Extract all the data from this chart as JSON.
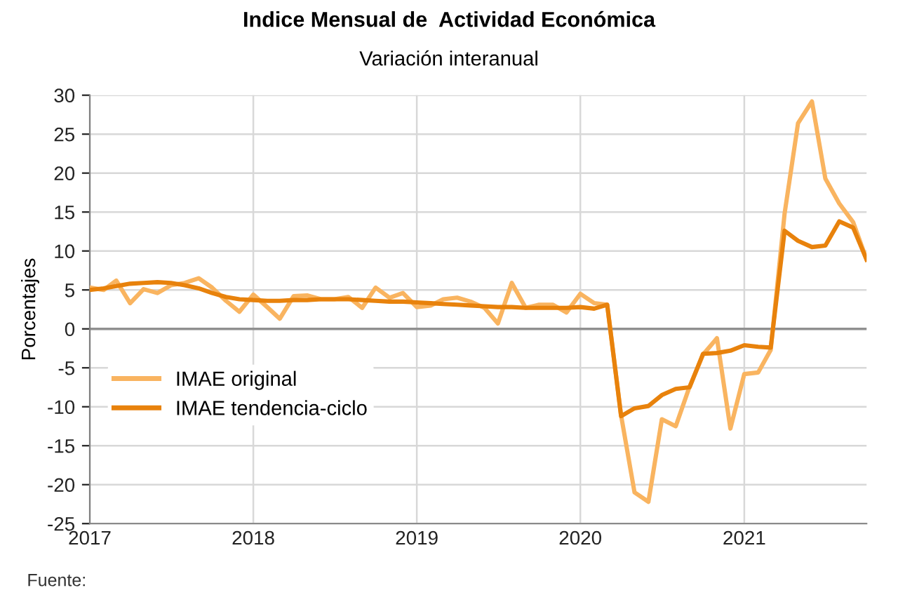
{
  "chart_data": {
    "type": "line",
    "title": "Indice Mensual de  Actividad Económica",
    "subtitle": "Variación interanual",
    "ylabel": "Porcentajes",
    "x": [
      "2017-01",
      "2017-02",
      "2017-03",
      "2017-04",
      "2017-05",
      "2017-06",
      "2017-07",
      "2017-08",
      "2017-09",
      "2017-10",
      "2017-11",
      "2017-12",
      "2018-01",
      "2018-02",
      "2018-03",
      "2018-04",
      "2018-05",
      "2018-06",
      "2018-07",
      "2018-08",
      "2018-09",
      "2018-10",
      "2018-11",
      "2018-12",
      "2019-01",
      "2019-02",
      "2019-03",
      "2019-04",
      "2019-05",
      "2019-06",
      "2019-07",
      "2019-08",
      "2019-09",
      "2019-10",
      "2019-11",
      "2019-12",
      "2020-01",
      "2020-02",
      "2020-03",
      "2020-04",
      "2020-05",
      "2020-06",
      "2020-07",
      "2020-08",
      "2020-09",
      "2020-10",
      "2020-11",
      "2020-12",
      "2021-01",
      "2021-02",
      "2021-03",
      "2021-04",
      "2021-05",
      "2021-06",
      "2021-07",
      "2021-08",
      "2021-09",
      "2021-10"
    ],
    "series": [
      {
        "name": "IMAE original",
        "color": "#f9b460",
        "values": [
          5.3,
          5.0,
          6.2,
          3.3,
          5.1,
          4.6,
          5.6,
          5.9,
          6.5,
          5.3,
          3.6,
          2.2,
          4.4,
          2.8,
          1.3,
          4.2,
          4.3,
          3.8,
          3.8,
          4.1,
          2.7,
          5.3,
          4.0,
          4.6,
          2.8,
          3.0,
          3.8,
          4.0,
          3.5,
          2.7,
          0.7,
          5.9,
          2.7,
          3.1,
          3.1,
          2.1,
          4.5,
          3.3,
          3.1,
          -11.1,
          -21.0,
          -22.2,
          -11.6,
          -12.5,
          -7.4,
          -3.3,
          -1.2,
          -12.8,
          -5.8,
          -5.6,
          -2.7,
          14.8,
          26.4,
          29.2,
          19.3,
          16.1,
          13.7,
          8.9
        ]
      },
      {
        "name": "IMAE tendencia-ciclo",
        "color": "#e8820c",
        "values": [
          5.0,
          5.2,
          5.5,
          5.8,
          5.9,
          6.0,
          5.9,
          5.6,
          5.2,
          4.6,
          4.1,
          3.8,
          3.7,
          3.6,
          3.6,
          3.7,
          3.7,
          3.8,
          3.8,
          3.8,
          3.7,
          3.6,
          3.5,
          3.5,
          3.4,
          3.3,
          3.2,
          3.1,
          3.0,
          2.9,
          2.8,
          2.8,
          2.7,
          2.7,
          2.7,
          2.7,
          2.8,
          2.6,
          3.1,
          -11.2,
          -10.2,
          -9.9,
          -8.5,
          -7.7,
          -7.5,
          -3.2,
          -3.1,
          -2.8,
          -2.1,
          -2.3,
          -2.4,
          12.6,
          11.3,
          10.5,
          10.7,
          13.8,
          13.0,
          8.9
        ]
      }
    ],
    "xlim": [
      "2017-01",
      "2021-10"
    ],
    "xticks": [
      {
        "value": "2017-01",
        "label": "2017"
      },
      {
        "value": "2018-01",
        "label": "2018"
      },
      {
        "value": "2019-01",
        "label": "2019"
      },
      {
        "value": "2020-01",
        "label": "2020"
      },
      {
        "value": "2021-01",
        "label": "2021"
      }
    ],
    "ylim": [
      -25,
      30
    ],
    "yticks": [
      -25,
      -20,
      -15,
      -10,
      -5,
      0,
      5,
      10,
      15,
      20,
      25,
      30
    ],
    "ref_lines": [
      {
        "axis": "y",
        "value": 0,
        "color": "#909090"
      }
    ],
    "grid": true,
    "legend": "left",
    "line_style": "solid",
    "marker": "none",
    "annotations": [
      "Fuente:"
    ]
  }
}
